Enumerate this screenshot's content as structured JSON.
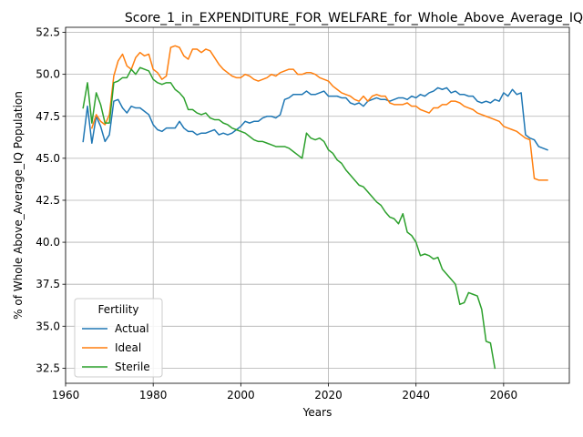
{
  "chart_data": {
    "type": "line",
    "title": "Score_1_in_EXPENDITURE_FOR_WELFARE_for_Whole_Above_Average_IQ",
    "xlabel": "Years",
    "ylabel": "% of Whole Above_Average_IQ Population",
    "xlim": [
      1960,
      2075
    ],
    "ylim": [
      31.6,
      52.8
    ],
    "xticks": [
      1960,
      1980,
      2000,
      2020,
      2040,
      2060
    ],
    "yticks": [
      32.5,
      35.0,
      37.5,
      40.0,
      42.5,
      45.0,
      47.5,
      50.0,
      52.5
    ],
    "xtick_labels": [
      "1960",
      "1980",
      "2000",
      "2020",
      "2040",
      "2060"
    ],
    "ytick_labels": [
      "32.5",
      "35.0",
      "37.5",
      "40.0",
      "42.5",
      "45.0",
      "47.5",
      "50.0",
      "52.5"
    ],
    "grid": true,
    "legend": {
      "title": "Fertility",
      "placement": "lower-left"
    },
    "series": [
      {
        "name": "Actual",
        "color": "#1f77b4",
        "x": [
          1964,
          1965,
          1966,
          1967,
          1968,
          1969,
          1970,
          1971,
          1972,
          1973,
          1974,
          1975,
          1976,
          1977,
          1978,
          1979,
          1980,
          1981,
          1982,
          1983,
          1984,
          1985,
          1986,
          1987,
          1988,
          1989,
          1990,
          1991,
          1992,
          1993,
          1994,
          1995,
          1996,
          1997,
          1998,
          1999,
          2000,
          2001,
          2002,
          2003,
          2004,
          2005,
          2006,
          2007,
          2008,
          2009,
          2010,
          2011,
          2012,
          2013,
          2014,
          2015,
          2016,
          2017,
          2018,
          2019,
          2020,
          2021,
          2022,
          2023,
          2024,
          2025,
          2026,
          2027,
          2028,
          2029,
          2030,
          2031,
          2032,
          2033,
          2034,
          2035,
          2036,
          2037,
          2038,
          2039,
          2040,
          2041,
          2042,
          2043,
          2044,
          2045,
          2046,
          2047,
          2048,
          2049,
          2050,
          2051,
          2052,
          2053,
          2054,
          2055,
          2056,
          2057,
          2058,
          2059,
          2060,
          2061,
          2062,
          2063,
          2064,
          2065,
          2066,
          2067,
          2068,
          2069,
          2070
        ],
        "values": [
          46.0,
          48.1,
          45.9,
          47.5,
          46.9,
          46.0,
          46.4,
          48.4,
          48.5,
          48.0,
          47.7,
          48.1,
          48.0,
          48.0,
          47.8,
          47.6,
          47.0,
          46.7,
          46.6,
          46.8,
          46.8,
          46.8,
          47.2,
          46.8,
          46.6,
          46.6,
          46.4,
          46.5,
          46.5,
          46.6,
          46.7,
          46.4,
          46.5,
          46.4,
          46.5,
          46.7,
          46.9,
          47.2,
          47.1,
          47.2,
          47.2,
          47.4,
          47.5,
          47.5,
          47.4,
          47.6,
          48.5,
          48.6,
          48.8,
          48.8,
          48.8,
          49.0,
          48.8,
          48.8,
          48.9,
          49.0,
          48.7,
          48.7,
          48.7,
          48.6,
          48.6,
          48.3,
          48.2,
          48.3,
          48.1,
          48.4,
          48.5,
          48.6,
          48.5,
          48.5,
          48.4,
          48.5,
          48.6,
          48.6,
          48.5,
          48.7,
          48.6,
          48.8,
          48.7,
          48.9,
          49.0,
          49.2,
          49.1,
          49.2,
          48.9,
          49.0,
          48.8,
          48.8,
          48.7,
          48.7,
          48.4,
          48.3,
          48.4,
          48.3,
          48.5,
          48.4,
          48.9,
          48.7,
          49.1,
          48.8,
          48.9,
          46.4,
          46.2,
          46.1,
          45.7,
          45.6,
          45.5
        ]
      },
      {
        "name": "Ideal",
        "color": "#ff7f0e",
        "x": [
          1966,
          1967,
          1968,
          1969,
          1970,
          1971,
          1972,
          1973,
          1974,
          1975,
          1976,
          1977,
          1978,
          1979,
          1980,
          1981,
          1982,
          1983,
          1984,
          1985,
          1986,
          1987,
          1988,
          1989,
          1990,
          1991,
          1992,
          1993,
          1994,
          1995,
          1996,
          1997,
          1998,
          1999,
          2000,
          2001,
          2002,
          2003,
          2004,
          2005,
          2006,
          2007,
          2008,
          2009,
          2010,
          2011,
          2012,
          2013,
          2014,
          2015,
          2016,
          2017,
          2018,
          2019,
          2020,
          2021,
          2022,
          2023,
          2024,
          2025,
          2026,
          2027,
          2028,
          2029,
          2030,
          2031,
          2032,
          2033,
          2034,
          2035,
          2036,
          2037,
          2038,
          2039,
          2040,
          2041,
          2042,
          2043,
          2044,
          2045,
          2046,
          2047,
          2048,
          2049,
          2050,
          2051,
          2052,
          2053,
          2054,
          2055,
          2056,
          2057,
          2058,
          2059,
          2060,
          2061,
          2062,
          2063,
          2064,
          2065,
          2066,
          2067,
          2068,
          2069,
          2070
        ],
        "values": [
          46.8,
          47.6,
          47.2,
          47.0,
          47.6,
          49.9,
          50.8,
          51.2,
          50.5,
          50.3,
          51.0,
          51.3,
          51.1,
          51.2,
          50.3,
          50.1,
          49.7,
          49.9,
          51.6,
          51.7,
          51.6,
          51.1,
          50.9,
          51.5,
          51.5,
          51.3,
          51.5,
          51.4,
          51.0,
          50.6,
          50.3,
          50.1,
          49.9,
          49.8,
          49.8,
          50.0,
          49.9,
          49.7,
          49.6,
          49.7,
          49.8,
          50.0,
          49.9,
          50.1,
          50.2,
          50.3,
          50.3,
          50.0,
          50.0,
          50.1,
          50.1,
          50.0,
          49.8,
          49.7,
          49.6,
          49.3,
          49.1,
          48.9,
          48.8,
          48.7,
          48.5,
          48.4,
          48.7,
          48.4,
          48.7,
          48.8,
          48.7,
          48.7,
          48.3,
          48.2,
          48.2,
          48.2,
          48.3,
          48.1,
          48.1,
          47.9,
          47.8,
          47.7,
          48.0,
          48.0,
          48.2,
          48.2,
          48.4,
          48.4,
          48.3,
          48.1,
          48.0,
          47.9,
          47.7,
          47.6,
          47.5,
          47.4,
          47.3,
          47.2,
          46.9,
          46.8,
          46.7,
          46.6,
          46.4,
          46.2,
          46.1,
          43.8,
          43.7,
          43.7,
          43.7
        ]
      },
      {
        "name": "Sterile",
        "color": "#2ca02c",
        "x": [
          1964,
          1965,
          1966,
          1967,
          1968,
          1969,
          1970,
          1971,
          1972,
          1973,
          1974,
          1975,
          1976,
          1977,
          1978,
          1979,
          1980,
          1981,
          1982,
          1983,
          1984,
          1985,
          1986,
          1987,
          1988,
          1989,
          1990,
          1991,
          1992,
          1993,
          1994,
          1995,
          1996,
          1997,
          1998,
          1999,
          2000,
          2001,
          2002,
          2003,
          2004,
          2005,
          2006,
          2007,
          2008,
          2009,
          2010,
          2011,
          2012,
          2013,
          2014,
          2015,
          2016,
          2017,
          2018,
          2019,
          2020,
          2021,
          2022,
          2023,
          2024,
          2025,
          2026,
          2027,
          2028,
          2029,
          2030,
          2031,
          2032,
          2033,
          2034,
          2035,
          2036,
          2037,
          2038,
          2039,
          2040,
          2041,
          2042,
          2043,
          2044,
          2045,
          2046,
          2047,
          2048,
          2049,
          2050,
          2051,
          2052,
          2053,
          2054,
          2055,
          2056,
          2057,
          2058
        ],
        "values": [
          48.0,
          49.5,
          47.1,
          48.9,
          48.2,
          47.1,
          47.1,
          49.5,
          49.6,
          49.8,
          49.8,
          50.3,
          50.0,
          50.4,
          50.3,
          50.2,
          49.7,
          49.5,
          49.4,
          49.5,
          49.5,
          49.1,
          48.9,
          48.6,
          47.9,
          47.9,
          47.7,
          47.6,
          47.7,
          47.4,
          47.3,
          47.3,
          47.1,
          47.0,
          46.8,
          46.7,
          46.6,
          46.5,
          46.3,
          46.1,
          46.0,
          46.0,
          45.9,
          45.8,
          45.7,
          45.7,
          45.7,
          45.6,
          45.4,
          45.2,
          45.0,
          46.5,
          46.2,
          46.1,
          46.2,
          46.0,
          45.5,
          45.3,
          44.9,
          44.7,
          44.3,
          44.0,
          43.7,
          43.4,
          43.3,
          43.0,
          42.7,
          42.4,
          42.2,
          41.8,
          41.5,
          41.4,
          41.1,
          41.7,
          40.6,
          40.4,
          40.0,
          39.2,
          39.3,
          39.2,
          39.0,
          39.1,
          38.4,
          38.1,
          37.8,
          37.5,
          36.3,
          36.4,
          37.0,
          36.9,
          36.8,
          36.0,
          34.1,
          34.0,
          32.5
        ]
      }
    ]
  }
}
